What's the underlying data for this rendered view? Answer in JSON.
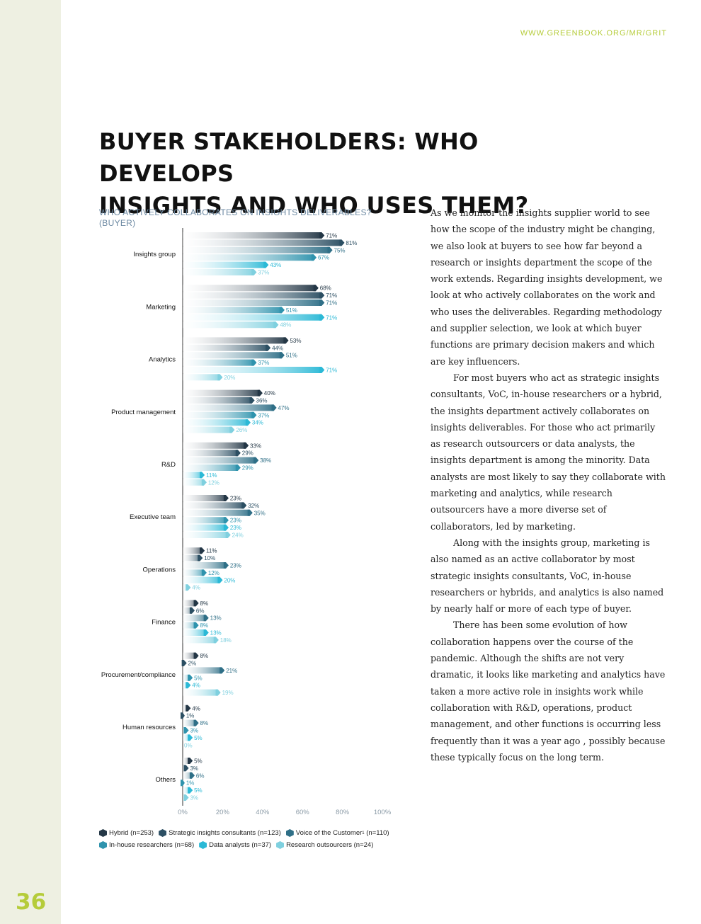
{
  "page": {
    "url": "WWW.GREENBOOK.ORG/MR/GRIT",
    "page_number": "36",
    "title_line1": "BUYER STAKEHOLDERS: WHO DEVELOPS",
    "title_line2": "INSIGHTS AND WHO USES THEM?"
  },
  "chart_title": {
    "line1": "WHO ACTIVELY COLLABORATES ON INSIGHTS DELIVERABLES?",
    "line2": "(BUYER)"
  },
  "chart_data": {
    "type": "bar",
    "orientation": "horizontal",
    "title": "WHO ACTIVELY COLLABORATES ON INSIGHTS DELIVERABLES? (BUYER)",
    "xlim": [
      0,
      100
    ],
    "x_ticks": [
      "0%",
      "20%",
      "40%",
      "60%",
      "80%",
      "100%"
    ],
    "categories": [
      "Insights group",
      "Marketing",
      "Analytics",
      "Product management",
      "R&D",
      "Executive team",
      "Operations",
      "Finance",
      "Procurement/compliance",
      "Human resources",
      "Others"
    ],
    "series": [
      {
        "name": "Hybrid (n=253)",
        "color": "#243746",
        "values": [
          71,
          68,
          53,
          40,
          33,
          23,
          11,
          8,
          8,
          4,
          5
        ]
      },
      {
        "name": "Strategic insights consultants (n=123)",
        "color": "#2c4f63",
        "values": [
          81,
          71,
          44,
          36,
          29,
          32,
          10,
          6,
          2,
          1,
          3
        ]
      },
      {
        "name": "Voice of the Customer",
        "sup": "1",
        "n": "(n=110)",
        "color": "#2f6f87",
        "values": [
          75,
          71,
          51,
          47,
          38,
          35,
          23,
          13,
          21,
          8,
          6
        ]
      },
      {
        "name": "In-house researchers (n=68)",
        "color": "#2f93ad",
        "values": [
          67,
          51,
          37,
          37,
          29,
          23,
          12,
          8,
          5,
          3,
          1
        ]
      },
      {
        "name": "Data analysts (n=37)",
        "color": "#2bb9d6",
        "values": [
          43,
          71,
          71,
          34,
          11,
          23,
          20,
          13,
          4,
          5,
          5
        ]
      },
      {
        "name": "Research outsourcers (n=24)",
        "color": "#7fd0df",
        "values": [
          37,
          48,
          20,
          26,
          12,
          24,
          4,
          18,
          19,
          0,
          3
        ]
      }
    ]
  },
  "legend": {
    "hybrid": "Hybrid (n=253)",
    "strategic": "Strategic insights consultants (n=123)",
    "voc": "Voice of the Customer",
    "voc_sup": "1",
    "voc_n": " (n=110)",
    "inhouse": "In-house researchers (n=68)",
    "analysts": "Data analysts (n=37)",
    "outsourcers": "Research outsourcers (n=24)"
  },
  "colors": {
    "hybrid": "#243746",
    "strategic": "#2c4f63",
    "voc": "#2f6f87",
    "inhouse": "#2f93ad",
    "analysts": "#2bb9d6",
    "outsourcers": "#7fd0df",
    "accent": "#b5cc3a"
  },
  "body": {
    "p1": "As we monitor the insights supplier world to see how the scope of the industry might be changing, we also look at buyers to see how far beyond a research or insights department the scope of the work extends. Regarding insights development, we look at who actively collaborates on the work and who uses the deliverables. Regarding methodology and supplier selection, we look at which buyer functions are primary decision makers and which are key influencers.",
    "p2": "For most buyers who act as strategic insights consultants, VoC, in-house researchers or a hybrid, the insights department actively collaborates on insights deliverables. For those who act primarily as research outsourcers or data analysts, the insights department is among the minority. Data analysts are most likely to say they collaborate with marketing and analytics, while research outsourcers have a more diverse set of collaborators, led by marketing.",
    "p3": "Along with the insights group, marketing is also named as an active collaborator by most strategic insights consultants, VoC, in-house researchers or hybrids, and analytics is also named by nearly half or more of each type of buyer.",
    "p4": "There has been some evolution of how collaboration happens over the course of the pandemic. Although the shifts are not very dramatic, it looks like marketing and analytics have taken a more active role in insights work while collaboration with R&D, operations, product management, and other functions is occurring less frequently than it was a year ago , possibly because these typically focus on the long term."
  }
}
